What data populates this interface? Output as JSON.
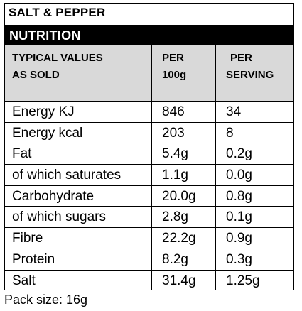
{
  "product": {
    "name": "SALT & PEPPER",
    "section_label": "NUTRITION"
  },
  "table": {
    "headers": {
      "col1_line1": "TYPICAL VALUES",
      "col1_line2": "AS SOLD",
      "col2_line1": "PER",
      "col2_line2": "100g",
      "col3_line1": "PER",
      "col3_line2": "SERVING"
    },
    "rows": [
      {
        "label": "Energy KJ",
        "per100": "846",
        "serving": "34"
      },
      {
        "label": "Energy kcal",
        "per100": "203",
        "serving": "8"
      },
      {
        "label": "Fat",
        "per100": "5.4g",
        "serving": "0.2g"
      },
      {
        "label": "of which saturates",
        "per100": "1.1g",
        "serving": "0.0g"
      },
      {
        "label": "Carbohydrate",
        "per100": "20.0g",
        "serving": "0.8g"
      },
      {
        "label": "of which sugars",
        "per100": "2.8g",
        "serving": "0.1g"
      },
      {
        "label": "Fibre",
        "per100": "22.2g",
        "serving": "0.9g"
      },
      {
        "label": "Protein",
        "per100": "8.2g",
        "serving": "0.3g"
      },
      {
        "label": "Salt",
        "per100": "31.4g",
        "serving": "1.25g"
      }
    ]
  },
  "footer": {
    "pack_size": "Pack size: 16g"
  }
}
